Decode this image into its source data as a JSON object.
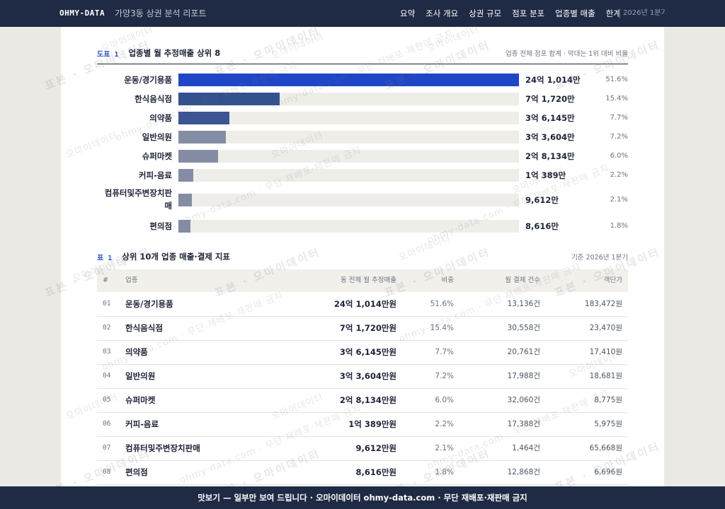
{
  "header": {
    "brand": "OHMY-DATA",
    "subtitle": "가양3동 상권 분석 리포트",
    "nav": [
      "요약",
      "조사 개요",
      "상권 규모",
      "점포 분포",
      "업종별 매출",
      "한계"
    ],
    "period_tag": "2026년 1분기"
  },
  "chart_section": {
    "label": "도표 1",
    "title": "업종별 월 추정매출 상위 8",
    "note": "업종 전체 점포 합계 · 막대는 1위 대비 비율"
  },
  "chart_data": {
    "type": "bar",
    "orientation": "horizontal",
    "categories": [
      "운동/경기용품",
      "한식음식점",
      "의약품",
      "일반의원",
      "슈퍼마켓",
      "커피-음료",
      "컴퓨터및주변장치판매",
      "편의점"
    ],
    "value_labels": [
      "24억 1,014만",
      "7억 1,720만",
      "3억 6,145만",
      "3억 3,604만",
      "2억 8,134만",
      "1억 389만",
      "9,612만",
      "8,616만"
    ],
    "values_manwon": [
      241014,
      71720,
      36145,
      33604,
      28134,
      10389,
      9612,
      8616
    ],
    "shares": [
      "51.6%",
      "15.4%",
      "7.7%",
      "7.2%",
      "6.0%",
      "2.2%",
      "2.1%",
      "1.8%"
    ],
    "bar_colors": [
      "#1f46c6",
      "#34518f",
      "#3d5494",
      "#848da3",
      "#848da3",
      "#848da3",
      "#848da3",
      "#848da3"
    ]
  },
  "table_section": {
    "label": "표 1",
    "title": "상위 10개 업종 매출·결제 지표",
    "note": "기준 2026년 1분기",
    "columns": [
      "#",
      "업종",
      "동 전체 월 추정매출",
      "비중",
      "월 결제 건수",
      "객단가"
    ],
    "rows": [
      {
        "idx": "01",
        "name": "운동/경기용품",
        "sales": "24억 1,014만원",
        "share": "51.6%",
        "count": "13,136건",
        "aov": "183,472원"
      },
      {
        "idx": "02",
        "name": "한식음식점",
        "sales": "7억 1,720만원",
        "share": "15.4%",
        "count": "30,558건",
        "aov": "23,470원"
      },
      {
        "idx": "03",
        "name": "의약품",
        "sales": "3억 6,145만원",
        "share": "7.7%",
        "count": "20,761건",
        "aov": "17,410원"
      },
      {
        "idx": "04",
        "name": "일반의원",
        "sales": "3억 3,604만원",
        "share": "7.2%",
        "count": "17,988건",
        "aov": "18,681원"
      },
      {
        "idx": "05",
        "name": "슈퍼마켓",
        "sales": "2억 8,134만원",
        "share": "6.0%",
        "count": "32,060건",
        "aov": "8,775원"
      },
      {
        "idx": "06",
        "name": "커피-음료",
        "sales": "1억 389만원",
        "share": "2.2%",
        "count": "17,388건",
        "aov": "5,975원"
      },
      {
        "idx": "07",
        "name": "컴퓨터및주변장치판매",
        "sales": "9,612만원",
        "share": "2.1%",
        "count": "1,464건",
        "aov": "65,668원"
      },
      {
        "idx": "08",
        "name": "편의점",
        "sales": "8,616만원",
        "share": "1.8%",
        "count": "12,868건",
        "aov": "6,696원"
      }
    ]
  },
  "watermark": {
    "brand_text": "오마이데이터",
    "sample_text": "표본 · 오마이데이터",
    "url_text": "ohmy-data.com · 무단 재배포·재판매 금지"
  },
  "footer": {
    "text": "맛보기 — 일부만 보여 드립니다 · 오마이데이터 ohmy-data.com · 무단 재배포·재판매 금지"
  }
}
